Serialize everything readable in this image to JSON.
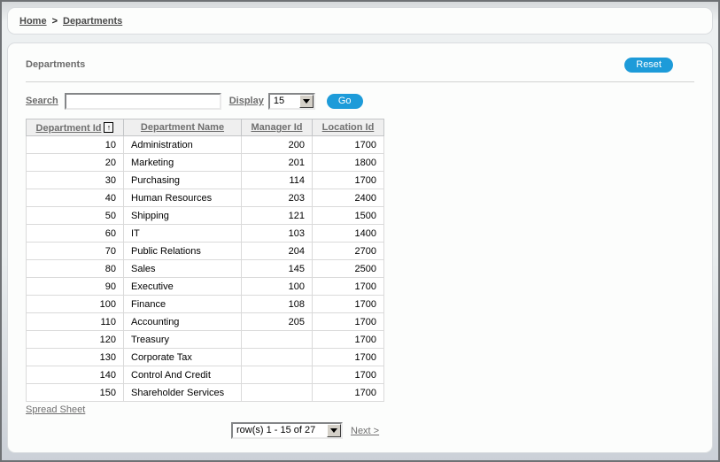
{
  "colors": {
    "accent_blue": "#1d9bd9",
    "link_gray": "#6f6f6f",
    "header_bg": "#efefef"
  },
  "breadcrumb": {
    "home_label": "Home",
    "separator": ">",
    "current_label": "Departments"
  },
  "region": {
    "title": "Departments",
    "reset_label": "Reset"
  },
  "toolbar": {
    "search_label": "Search",
    "search_value": "",
    "display_label": "Display",
    "display_value": "15",
    "go_label": "Go"
  },
  "table": {
    "columns": [
      {
        "label": "Department Id",
        "sorted": "asc",
        "sort_icon": "↑"
      },
      {
        "label": "Department Name"
      },
      {
        "label": "Manager Id"
      },
      {
        "label": "Location Id"
      }
    ],
    "rows": [
      [
        "10",
        "Administration",
        "200",
        "1700"
      ],
      [
        "20",
        "Marketing",
        "201",
        "1800"
      ],
      [
        "30",
        "Purchasing",
        "114",
        "1700"
      ],
      [
        "40",
        "Human Resources",
        "203",
        "2400"
      ],
      [
        "50",
        "Shipping",
        "121",
        "1500"
      ],
      [
        "60",
        "IT",
        "103",
        "1400"
      ],
      [
        "70",
        "Public Relations",
        "204",
        "2700"
      ],
      [
        "80",
        "Sales",
        "145",
        "2500"
      ],
      [
        "90",
        "Executive",
        "100",
        "1700"
      ],
      [
        "100",
        "Finance",
        "108",
        "1700"
      ],
      [
        "110",
        "Accounting",
        "205",
        "1700"
      ],
      [
        "120",
        "Treasury",
        "",
        "1700"
      ],
      [
        "130",
        "Corporate Tax",
        "",
        "1700"
      ],
      [
        "140",
        "Control And Credit",
        "",
        "1700"
      ],
      [
        "150",
        "Shareholder Services",
        "",
        "1700"
      ]
    ]
  },
  "footer": {
    "spreadsheet_label": "Spread Sheet",
    "pagination_value": "row(s) 1 - 15 of 27",
    "next_label": "Next >"
  }
}
